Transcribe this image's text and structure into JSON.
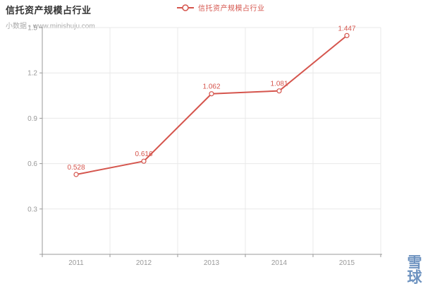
{
  "header": {
    "title": "信托资产规模占行业",
    "subtitle": "小数据 - www.minishuju.com"
  },
  "legend": {
    "label": "信托资产规模占行业"
  },
  "watermark": {
    "text": "雪球"
  },
  "colors": {
    "series_red": "#d5554d",
    "title_text": "#333333",
    "subtitle_text": "#aaaaaa",
    "axis_line": "#999999",
    "axis_tick_label": "#999999",
    "grid_line": "#e8e8e8",
    "marker_fill": "#ffffff",
    "watermark_blue": "#6e93c0"
  },
  "chart_data": {
    "type": "line",
    "title": "信托资产规模占行业",
    "subtitle": "小数据 - www.minishuju.com",
    "legend_entries": [
      "信托资产规模占行业"
    ],
    "legend_position": "top-center",
    "categories": [
      "2011",
      "2012",
      "2013",
      "2014",
      "2015"
    ],
    "series": [
      {
        "name": "信托资产规模占行业",
        "values": [
          0.528,
          0.616,
          1.062,
          1.081,
          1.447
        ],
        "color": "#d5554d",
        "marker": "hollow-circle",
        "data_labels": [
          "0.528",
          "0.616",
          "1.062",
          "1.081",
          "1.447"
        ]
      }
    ],
    "xlabel": "",
    "ylabel": "",
    "ylim": [
      0,
      1.5
    ],
    "yticks": [
      0.3,
      0.6,
      0.9,
      1.2,
      1.5
    ],
    "ytick_labels": [
      "0.3",
      "0.6",
      "0.9",
      "1.2",
      "1.5"
    ],
    "grid": true
  }
}
